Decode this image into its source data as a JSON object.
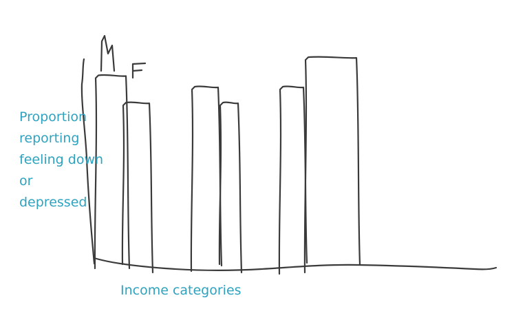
{
  "chart_data": {
    "type": "bar",
    "title": "",
    "xlabel": "Income categories",
    "ylabel": "Proportion\nreporting\nfeeling down\nor\ndepressed",
    "categories": [
      "",
      "",
      ""
    ],
    "series": [
      {
        "name": "M",
        "values": [
          0.85,
          0.8,
          0.8
        ]
      },
      {
        "name": "F",
        "values": [
          0.73,
          0.73,
          0.93
        ]
      }
    ],
    "ylim": [
      0,
      1
    ],
    "grid": false,
    "legend_position": "top-left",
    "style": "hand-drawn sketch",
    "label_color": "#2ea2bf",
    "ink_color": "#3a3a3a"
  }
}
